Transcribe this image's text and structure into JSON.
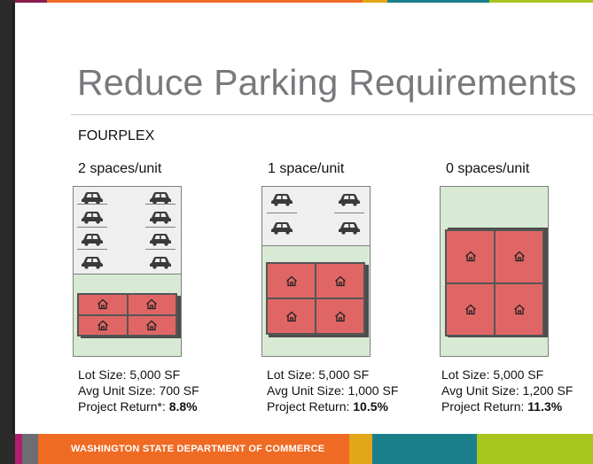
{
  "title": "Reduce Parking Requirements",
  "subtitle": "FOURPLEX",
  "columns": [
    {
      "heading": "2 spaces/unit",
      "lot_size": "Lot Size: 5,000 SF",
      "avg_unit": "Avg Unit Size: 700 SF",
      "return_label": "Project Return*:",
      "return_value": "8.8%"
    },
    {
      "heading": "1 space/unit",
      "lot_size": "Lot Size: 5,000 SF",
      "avg_unit": "Avg Unit Size: 1,000 SF",
      "return_label": "Project Return:",
      "return_value": "10.5%"
    },
    {
      "heading": "0 spaces/unit",
      "lot_size": "Lot Size: 5,000 SF",
      "avg_unit": "Avg Unit Size: 1,200 SF",
      "return_label": "Project Return:",
      "return_value": "11.3%"
    }
  ],
  "footer": {
    "text": "WASHINGTON STATE DEPARTMENT OF COMMERCE"
  },
  "icons": {
    "car": "car-icon",
    "house": "house-icon"
  },
  "colors": {
    "title": "#77797c",
    "lot_green": "#d8ead3",
    "parking_gray": "#efefef",
    "unit_red": "#e06666",
    "footer_orange": "#ef6a23",
    "footer_gold": "#e3a51a",
    "footer_teal": "#1b7f8c",
    "footer_green": "#a8c61f",
    "footer_magenta": "#b01f6e"
  }
}
